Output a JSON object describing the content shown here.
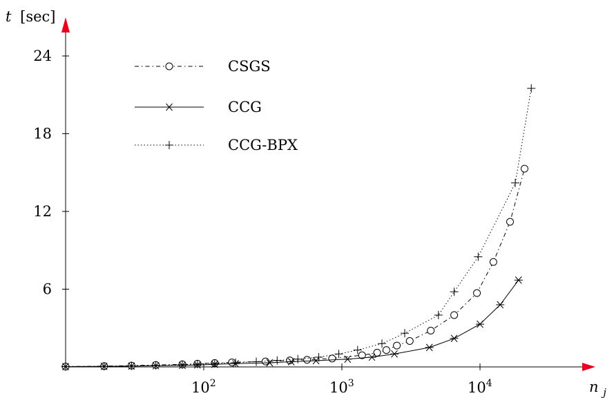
{
  "chart_data": {
    "type": "line",
    "x_scale": "log",
    "xlim": [
      10,
      30000
    ],
    "ylim": [
      0,
      26
    ],
    "ylabel_var": "t",
    "ylabel_unit": "[sec]",
    "xlabel_var": "n",
    "xlabel_sub": "j",
    "x_ticks": [
      {
        "value": 100,
        "base": "10",
        "exp": "2"
      },
      {
        "value": 1000,
        "base": "10",
        "exp": "3"
      },
      {
        "value": 10000,
        "base": "10",
        "exp": "4"
      }
    ],
    "y_ticks": [
      {
        "value": 6,
        "label": "6"
      },
      {
        "value": 12,
        "label": "12"
      },
      {
        "value": 18,
        "label": "18"
      },
      {
        "value": 24,
        "label": "24"
      }
    ],
    "grid": false,
    "legend_position": "top-left",
    "axis_arrow_color": "#e8001c",
    "series": [
      {
        "name": "CSGS",
        "style": "dashdot",
        "marker": "circle",
        "x": [
          10,
          19,
          30,
          45,
          70,
          90,
          120,
          160,
          280,
          420,
          560,
          850,
          1400,
          1800,
          2100,
          2500,
          3100,
          4400,
          6500,
          9500,
          12500,
          16500,
          21000
        ],
        "y": [
          0.03,
          0.06,
          0.1,
          0.15,
          0.2,
          0.25,
          0.3,
          0.35,
          0.42,
          0.5,
          0.55,
          0.65,
          0.9,
          1.1,
          1.3,
          1.65,
          2.0,
          2.8,
          4.0,
          5.7,
          8.1,
          11.2,
          15.3
        ]
      },
      {
        "name": "CCG",
        "style": "solid",
        "marker": "asterisk",
        "x": [
          10,
          19,
          30,
          45,
          70,
          90,
          120,
          170,
          300,
          430,
          650,
          1100,
          1650,
          2400,
          4300,
          6500,
          10000,
          14000,
          19000
        ],
        "y": [
          0.02,
          0.04,
          0.06,
          0.09,
          0.12,
          0.15,
          0.2,
          0.25,
          0.32,
          0.4,
          0.48,
          0.6,
          0.75,
          1.0,
          1.5,
          2.2,
          3.3,
          4.8,
          6.7
        ]
      },
      {
        "name": "CCG-BPX",
        "style": "dotted",
        "marker": "plus",
        "x": [
          10,
          19,
          30,
          45,
          70,
          90,
          120,
          170,
          240,
          340,
          480,
          680,
          950,
          1300,
          1950,
          2850,
          5000,
          6500,
          9700,
          18000,
          23500
        ],
        "y": [
          0.03,
          0.05,
          0.08,
          0.12,
          0.17,
          0.22,
          0.27,
          0.33,
          0.4,
          0.5,
          0.6,
          0.75,
          1.0,
          1.3,
          1.8,
          2.6,
          4.0,
          5.8,
          8.5,
          14.2,
          21.5
        ]
      }
    ]
  }
}
